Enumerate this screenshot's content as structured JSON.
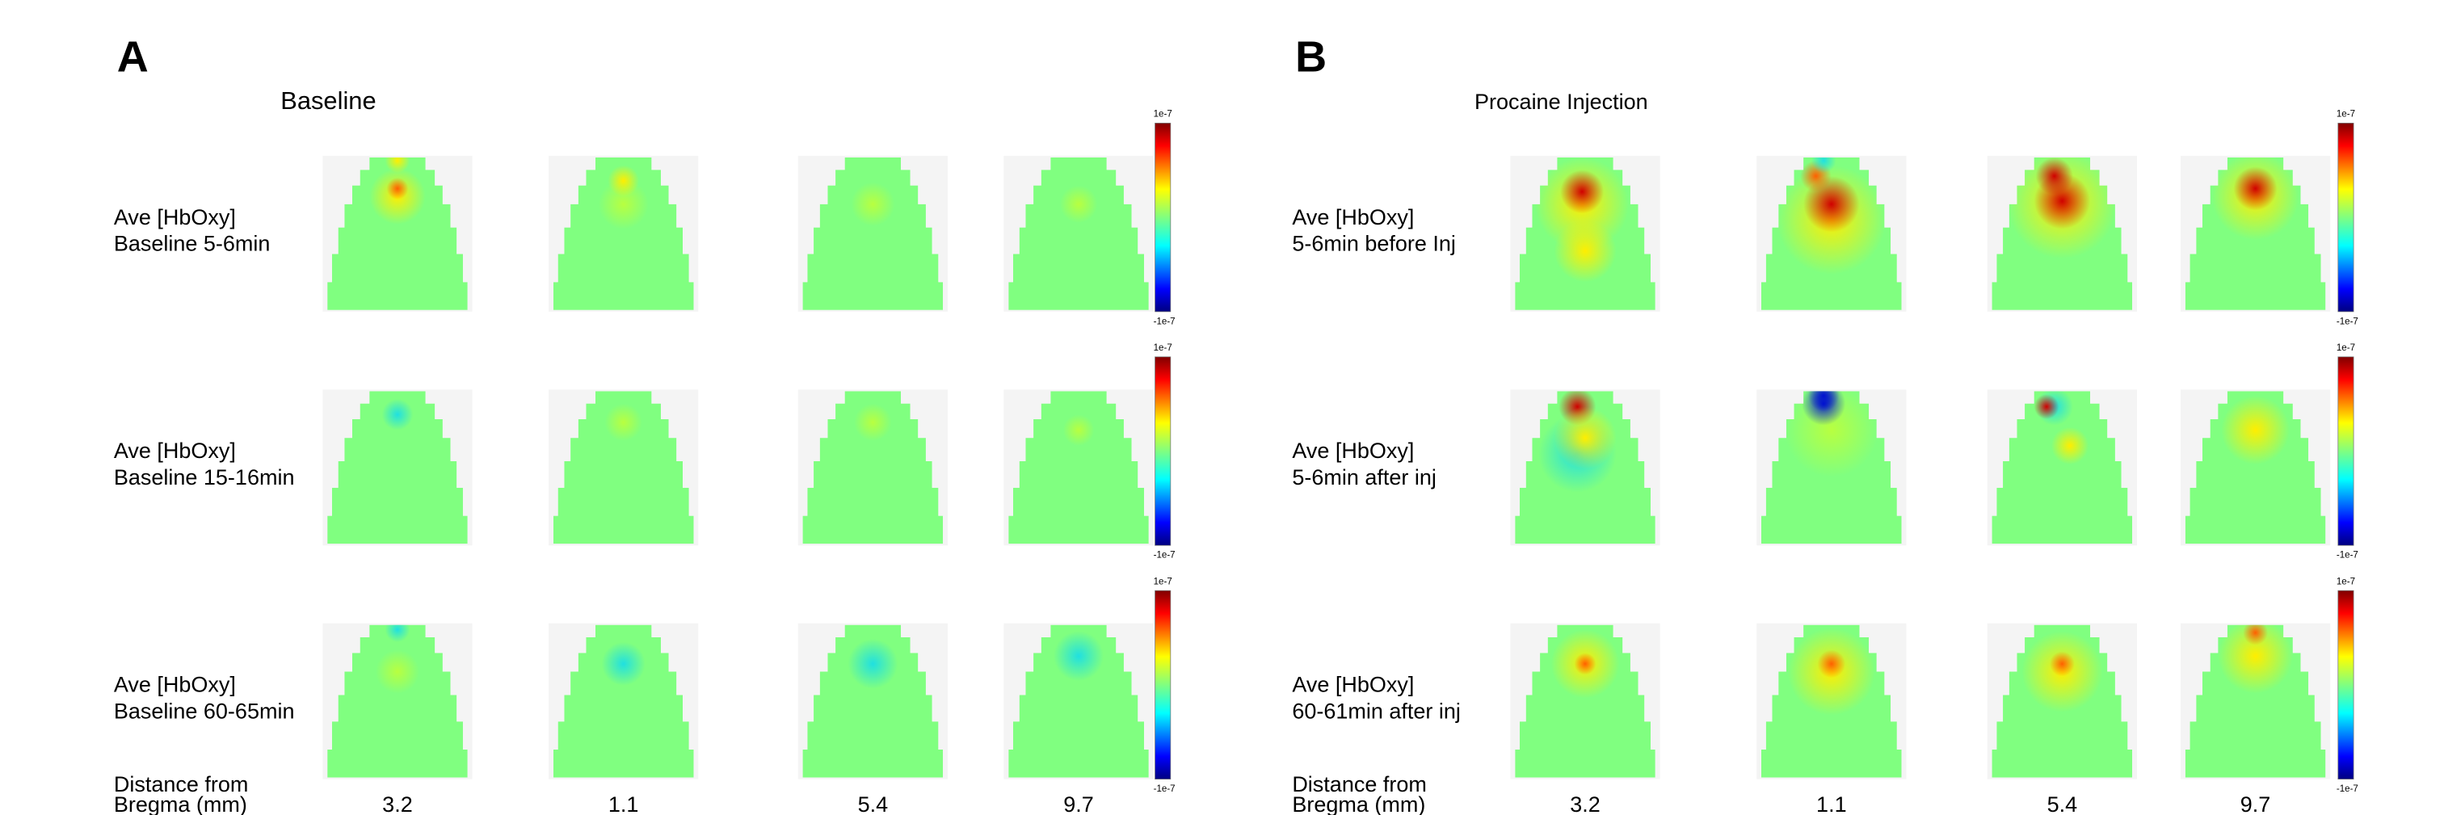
{
  "panels": [
    {
      "letter": "A",
      "title": "Baseline",
      "rows": [
        {
          "label_lines": [
            "Ave [HbOxy]",
            "Baseline 5-6min"
          ]
        },
        {
          "label_lines": [
            "Ave [HbOxy]",
            "Baseline 15-16min"
          ]
        },
        {
          "label_lines": [
            "Ave [HbOxy]",
            "Baseline 60-65min"
          ]
        }
      ],
      "colorbar": {
        "max": "1e-7",
        "min": "-1e-7"
      },
      "footer": {
        "label_lines": [
          "Distance from",
          "Bregma (mm)"
        ],
        "distances": [
          "3.2",
          "1.1",
          "5.4",
          "9.7"
        ]
      }
    },
    {
      "letter": "B",
      "title": "Procaine Injection",
      "rows": [
        {
          "label_lines": [
            "Ave [HbOxy]",
            "5-6min before Inj"
          ]
        },
        {
          "label_lines": [
            "Ave [HbOxy]",
            "5-6min after inj"
          ]
        },
        {
          "label_lines": [
            "Ave [HbOxy]",
            "60-61min after inj"
          ]
        }
      ],
      "colorbar": {
        "max": "1e-7",
        "min": "-1e-7"
      },
      "footer": {
        "label_lines": [
          "Distance from",
          "Bregma (mm)"
        ],
        "distances": [
          "3.2",
          "1.1",
          "5.4",
          "9.7"
        ]
      }
    }
  ]
}
